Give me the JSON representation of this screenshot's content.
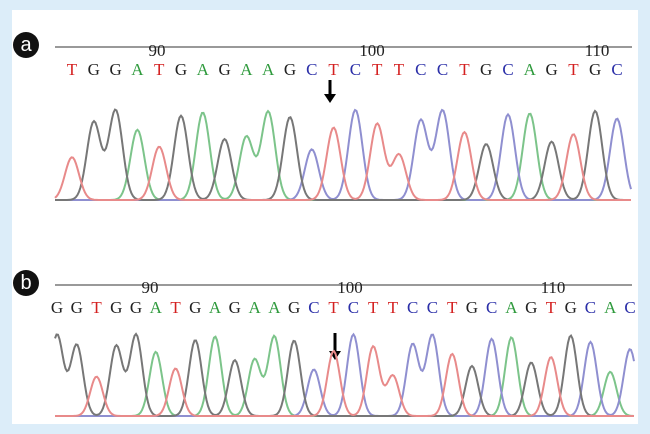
{
  "panels": [
    {
      "label": "a",
      "positions": [
        "90",
        "100",
        "110"
      ],
      "bases": [
        "T",
        "G",
        "G",
        "A",
        "T",
        "G",
        "A",
        "G",
        "A",
        "A",
        "G",
        "C",
        "T",
        "C",
        "T",
        "T",
        "C",
        "C",
        "T",
        "G",
        "C",
        "A",
        "G",
        "T",
        "G",
        "C"
      ]
    },
    {
      "label": "b",
      "positions": [
        "90",
        "100",
        "110"
      ],
      "bases": [
        "G",
        "G",
        "T",
        "G",
        "G",
        "A",
        "T",
        "G",
        "A",
        "G",
        "A",
        "A",
        "G",
        "C",
        "T",
        "C",
        "T",
        "T",
        "C",
        "C",
        "T",
        "G",
        "C",
        "A",
        "G",
        "T",
        "G",
        "C",
        "A",
        "C"
      ]
    }
  ],
  "base_colors": {
    "A": "#2e9a3c",
    "C": "#2b2fa8",
    "G": "#222222",
    "T": "#d42020"
  },
  "trace_colors": {
    "A": "#7cc48a",
    "C": "#8f8fd0",
    "G": "#777777",
    "T": "#e88a8a"
  }
}
